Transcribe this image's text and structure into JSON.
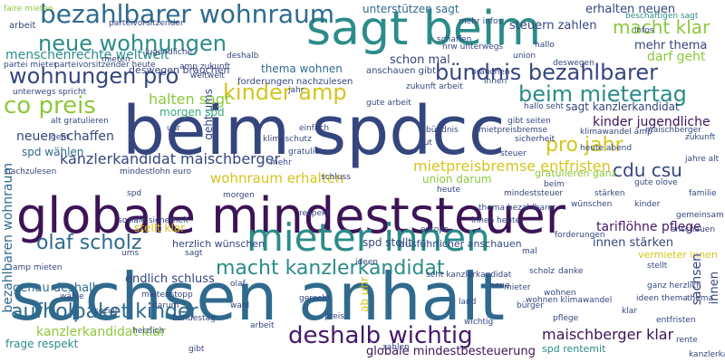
{
  "palette": {
    "navy": "#35467e",
    "blue": "#2f6a8e",
    "teal": "#2b8c8a",
    "green": "#3aa878",
    "lime": "#8cc83c",
    "yellow": "#d4c51c",
    "purple": "#46196b",
    "darkpurple": "#3c1456"
  },
  "words": [
    {
      "text": "beim spdcc",
      "color": "#35467e"
    },
    {
      "text": "sachsen anhalt",
      "color": "#2f6a8e"
    },
    {
      "text": "globale mindeststeuer",
      "color": "#3c1456"
    },
    {
      "text": "sagt beim",
      "color": "#2b8c8a"
    },
    {
      "text": "mieter innen",
      "color": "#2b8c8a"
    },
    {
      "text": "bezahlbarer wohnraum",
      "color": "#2f6a8e"
    },
    {
      "text": "neue wohnungen",
      "color": "#2b8c8a"
    },
    {
      "text": "wohnungen pro",
      "color": "#35467e"
    },
    {
      "text": "kinder amp",
      "color": "#d4c51c"
    },
    {
      "text": "bündnis bezahlbarer",
      "color": "#35467e"
    },
    {
      "text": "beim mietertag",
      "color": "#2b8c8a"
    },
    {
      "text": "co preis",
      "color": "#8cc83c"
    },
    {
      "text": "pro jahr",
      "color": "#d4c51c"
    },
    {
      "text": "cdu csu",
      "color": "#35467e"
    },
    {
      "text": "macht klar",
      "color": "#8cc83c"
    },
    {
      "text": "olaf scholz",
      "color": "#2f6a8e"
    },
    {
      "text": "macht kanzlerkandidat",
      "color": "#2b8c8a"
    },
    {
      "text": "aufholpaket kinder",
      "color": "#2f6a8e"
    },
    {
      "text": "deshalb wichtig",
      "color": "#46196b"
    },
    {
      "text": "kanzlerkandidat maischberger",
      "color": "#35467e"
    },
    {
      "text": "menschenrechte weltweit",
      "color": "#2b8c8a"
    },
    {
      "text": "kanzlerkandidat klar",
      "color": "#8cc83c"
    },
    {
      "text": "maischberger klar",
      "color": "#3c1456"
    },
    {
      "text": "globale mindestbesteuerung",
      "color": "#3c1456"
    },
    {
      "text": "mietpreisbremse entfristen",
      "color": "#d4c51c"
    },
    {
      "text": "wohnraum erhalten",
      "color": "#d4c51c"
    },
    {
      "text": "kinder jugendliche",
      "color": "#3c1456"
    },
    {
      "text": "sagt kanzlerkandidat",
      "color": "#35467e"
    },
    {
      "text": "halten sagt",
      "color": "#8cc83c"
    },
    {
      "text": "thema wohnen",
      "color": "#2f6a8e"
    },
    {
      "text": "mehr thema",
      "color": "#35467e"
    },
    {
      "text": "darf geht",
      "color": "#8cc83c"
    },
    {
      "text": "erhalten neuen",
      "color": "#35467e"
    },
    {
      "text": "neuen schaffen",
      "color": "#35467e"
    },
    {
      "text": "tariflöhne pflege",
      "color": "#46196b"
    },
    {
      "text": "innen stärken",
      "color": "#35467e"
    },
    {
      "text": "genau deshalb",
      "color": "#2f6a8e"
    },
    {
      "text": "endlich schluss",
      "color": "#35467e"
    },
    {
      "text": "union darum",
      "color": "#8cc83c"
    },
    {
      "text": "spd wählen",
      "color": "#2f6a8e"
    },
    {
      "text": "unterstützen sagt",
      "color": "#2f6a8e"
    },
    {
      "text": "steuern zahlen",
      "color": "#35467e"
    },
    {
      "text": "stellt klar",
      "color": "#d4c51c"
    },
    {
      "text": "spd stellt",
      "color": "#35467e"
    },
    {
      "text": "herzlich wünschen",
      "color": "#35467e"
    },
    {
      "text": "ausführlicher anschauen",
      "color": "#35467e"
    },
    {
      "text": "frage respekt",
      "color": "#2b8c8a"
    },
    {
      "text": "spd rentemit",
      "color": "#2b8c8a"
    },
    {
      "text": "vermieter innen",
      "color": "#d4c51c"
    },
    {
      "text": "bezahlbaren wohnraum",
      "color": "#2f6a8e"
    },
    {
      "text": "ab uhr",
      "color": "#d4c51c"
    },
    {
      "text": "geht ums",
      "color": "#35467e"
    },
    {
      "text": "gratulieren ganz",
      "color": "#8cc83c"
    },
    {
      "text": "innen",
      "color": "#35467e"
    },
    {
      "text": "sachsen",
      "color": "#35467e"
    },
    {
      "text": "klimawandel amp",
      "color": "#35467e"
    },
    {
      "text": "schon mal",
      "color": "#35467e"
    },
    {
      "text": "morgen spd",
      "color": "#3aa878"
    },
    {
      "text": "amp mieten",
      "color": "#35467e"
    },
    {
      "text": "beschäftigen sagt",
      "color": "#2b8c8a"
    },
    {
      "text": "parteivorsitzender",
      "color": "#35467e"
    },
    {
      "text": "deswegen brauchen",
      "color": "#35467e"
    },
    {
      "text": "arbeit",
      "color": "#35467e"
    },
    {
      "text": "faire mieten",
      "color": "#8cc83c"
    },
    {
      "text": "anschauen gibt",
      "color": "#35467e"
    },
    {
      "text": "forderungen nachzulesen",
      "color": "#35467e"
    },
    {
      "text": "ganz herzlich",
      "color": "#35467e"
    },
    {
      "text": "jahre alt",
      "color": "#35467e"
    },
    {
      "text": "seht kanzlerkandidat",
      "color": "#35467e"
    },
    {
      "text": "zukunft arbeit",
      "color": "#35467e"
    },
    {
      "text": "amp zukunft",
      "color": "#35467e"
    },
    {
      "text": "alt gratulieren",
      "color": "#35467e"
    },
    {
      "text": "unterwegs spricht",
      "color": "#35467e"
    },
    {
      "text": "nachzulesen",
      "color": "#35467e"
    },
    {
      "text": "wohnen klimawandel",
      "color": "#35467e"
    },
    {
      "text": "gute olove",
      "color": "#35467e"
    },
    {
      "text": "hallo seht",
      "color": "#35467e"
    },
    {
      "text": "parteivorsitzender heute",
      "color": "#35467e"
    },
    {
      "text": "partei mieter",
      "color": "#35467e"
    },
    {
      "text": "bürger",
      "color": "#35467e"
    },
    {
      "text": "ideen thema",
      "color": "#35467e"
    },
    {
      "text": "thema",
      "color": "#35467e"
    },
    {
      "text": "mehr infos",
      "color": "#35467e"
    },
    {
      "text": "nrw unterwegs",
      "color": "#35467e"
    },
    {
      "text": "gibt seiten",
      "color": "#35467e"
    },
    {
      "text": "klimaschutz",
      "color": "#35467e"
    },
    {
      "text": "gute arbeit",
      "color": "#35467e"
    },
    {
      "text": "einfach",
      "color": "#35467e"
    },
    {
      "text": "gerecht",
      "color": "#35467e"
    },
    {
      "text": "thema bezahlbarer",
      "color": "#35467e"
    },
    {
      "text": "innen heute",
      "color": "#35467e"
    },
    {
      "text": "soziale sicherheit",
      "color": "#35467e"
    },
    {
      "text": "mietenstopp",
      "color": "#35467e"
    },
    {
      "text": "rente",
      "color": "#35467e"
    },
    {
      "text": "mieter",
      "color": "#35467e"
    },
    {
      "text": "wohnen",
      "color": "#35467e"
    },
    {
      "text": "heute abend",
      "color": "#35467e"
    },
    {
      "text": "zukunft",
      "color": "#35467e"
    },
    {
      "text": "stellt",
      "color": "#35467e"
    },
    {
      "text": "familie",
      "color": "#35467e"
    },
    {
      "text": "mindestlohn euro",
      "color": "#35467e"
    },
    {
      "text": "europa",
      "color": "#35467e"
    },
    {
      "text": "land",
      "color": "#35467e"
    },
    {
      "text": "danke",
      "color": "#35467e"
    },
    {
      "text": "gemeinsam",
      "color": "#35467e"
    },
    {
      "text": "respekt",
      "color": "#35467e"
    },
    {
      "text": "kinder",
      "color": "#35467e"
    },
    {
      "text": "olaf",
      "color": "#35467e"
    },
    {
      "text": "scholz",
      "color": "#35467e"
    },
    {
      "text": "bundestag",
      "color": "#35467e"
    },
    {
      "text": "wahl",
      "color": "#35467e"
    },
    {
      "text": "spd",
      "color": "#35467e"
    },
    {
      "text": "sozial",
      "color": "#35467e"
    },
    {
      "text": "mietpreisbremse",
      "color": "#35467e"
    },
    {
      "text": "heute",
      "color": "#35467e"
    },
    {
      "text": "gut",
      "color": "#35467e"
    },
    {
      "text": "sagt",
      "color": "#35467e"
    },
    {
      "text": "jahr",
      "color": "#35467e"
    },
    {
      "text": "beim",
      "color": "#35467e"
    },
    {
      "text": "innen",
      "color": "#35467e"
    },
    {
      "text": "gratulieren",
      "color": "#35467e"
    },
    {
      "text": "mal",
      "color": "#35467e"
    },
    {
      "text": "pflege",
      "color": "#35467e"
    },
    {
      "text": "arbeit",
      "color": "#35467e"
    },
    {
      "text": "wichtig",
      "color": "#35467e"
    },
    {
      "text": "klar",
      "color": "#35467e"
    },
    {
      "text": "gibt",
      "color": "#35467e"
    },
    {
      "text": "preis",
      "color": "#35467e"
    },
    {
      "text": "darum",
      "color": "#35467e"
    },
    {
      "text": "union",
      "color": "#35467e"
    },
    {
      "text": "neue",
      "color": "#35467e"
    },
    {
      "text": "hallo",
      "color": "#35467e"
    },
    {
      "text": "schaffen",
      "color": "#35467e"
    },
    {
      "text": "mehr",
      "color": "#35467e"
    },
    {
      "text": "morgen",
      "color": "#35467e"
    },
    {
      "text": "wünschen",
      "color": "#35467e"
    },
    {
      "text": "stärken",
      "color": "#35467e"
    },
    {
      "text": "brauchen",
      "color": "#35467e"
    },
    {
      "text": "deshalb",
      "color": "#35467e"
    },
    {
      "text": "anschauen",
      "color": "#35467e"
    },
    {
      "text": "herzlich",
      "color": "#35467e"
    },
    {
      "text": "deswegen",
      "color": "#35467e"
    },
    {
      "text": "jugendliche",
      "color": "#35467e"
    },
    {
      "text": "schluss",
      "color": "#35467e"
    },
    {
      "text": "geht",
      "color": "#35467e"
    },
    {
      "text": "steuer",
      "color": "#35467e"
    },
    {
      "text": "zahlen",
      "color": "#35467e"
    },
    {
      "text": "weltweit",
      "color": "#35467e"
    },
    {
      "text": "entfristen",
      "color": "#35467e"
    },
    {
      "text": "mieten",
      "color": "#35467e"
    },
    {
      "text": "wähle",
      "color": "#35467e"
    },
    {
      "text": "ums",
      "color": "#35467e"
    },
    {
      "text": "kanzlerkandidat",
      "color": "#35467e"
    },
    {
      "text": "maischberger",
      "color": "#35467e"
    },
    {
      "text": "uhr",
      "color": "#35467e"
    },
    {
      "text": "infos",
      "color": "#35467e"
    },
    {
      "text": "ideen",
      "color": "#35467e"
    },
    {
      "text": "sicherheit",
      "color": "#35467e"
    },
    {
      "text": "mindeststeuer",
      "color": "#35467e"
    },
    {
      "text": "bündnis",
      "color": "#35467e"
    },
    {
      "text": "forderungen",
      "color": "#35467e"
    }
  ]
}
